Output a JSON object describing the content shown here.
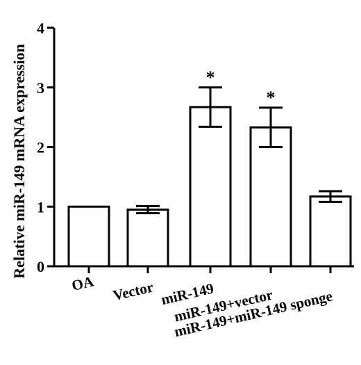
{
  "chart_data": {
    "type": "bar",
    "title": "",
    "xlabel": "",
    "ylabel": "Relative miR-149 mRNA expression",
    "ylim": [
      0,
      4
    ],
    "yticks": [
      "0",
      "1",
      "2",
      "3",
      "4"
    ],
    "categories": [
      "OA",
      "Vector",
      "miR-149",
      "miR-149+vector",
      "miR-149+miR-149 sponge"
    ],
    "values": [
      1.0,
      0.95,
      2.67,
      2.33,
      1.17
    ],
    "errors": [
      0.0,
      0.06,
      0.33,
      0.33,
      0.09
    ],
    "annotations": [
      "",
      "",
      "*",
      "*",
      ""
    ],
    "grid": false,
    "legend": "none",
    "bar_fill": "#ffffff",
    "bar_stroke": "#000000"
  }
}
